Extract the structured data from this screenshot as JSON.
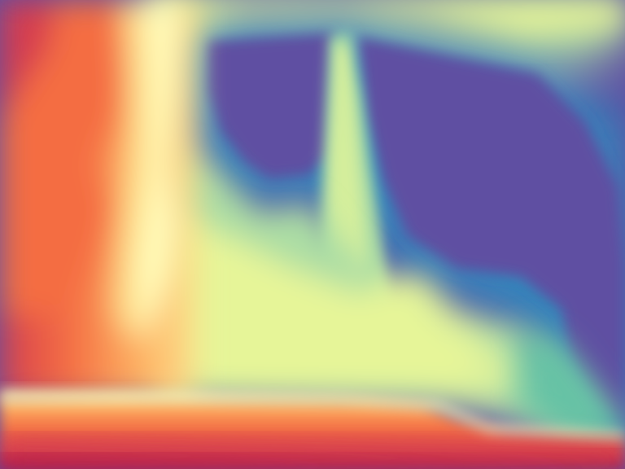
{
  "image": {
    "kind": "depth-map",
    "colormap": "Spectral",
    "palette": {
      "near_dark": "#9e0142",
      "near": "#d53e4f",
      "near_mid": "#f46d43",
      "mid_warm": "#fdae61",
      "mid_light": "#fee08b",
      "middle": "#ffffbf",
      "mid_cool": "#e6f598",
      "far_light": "#abdda4",
      "far_mid": "#66c2a5",
      "far": "#3288bd",
      "farthest": "#5e4fa2"
    }
  }
}
